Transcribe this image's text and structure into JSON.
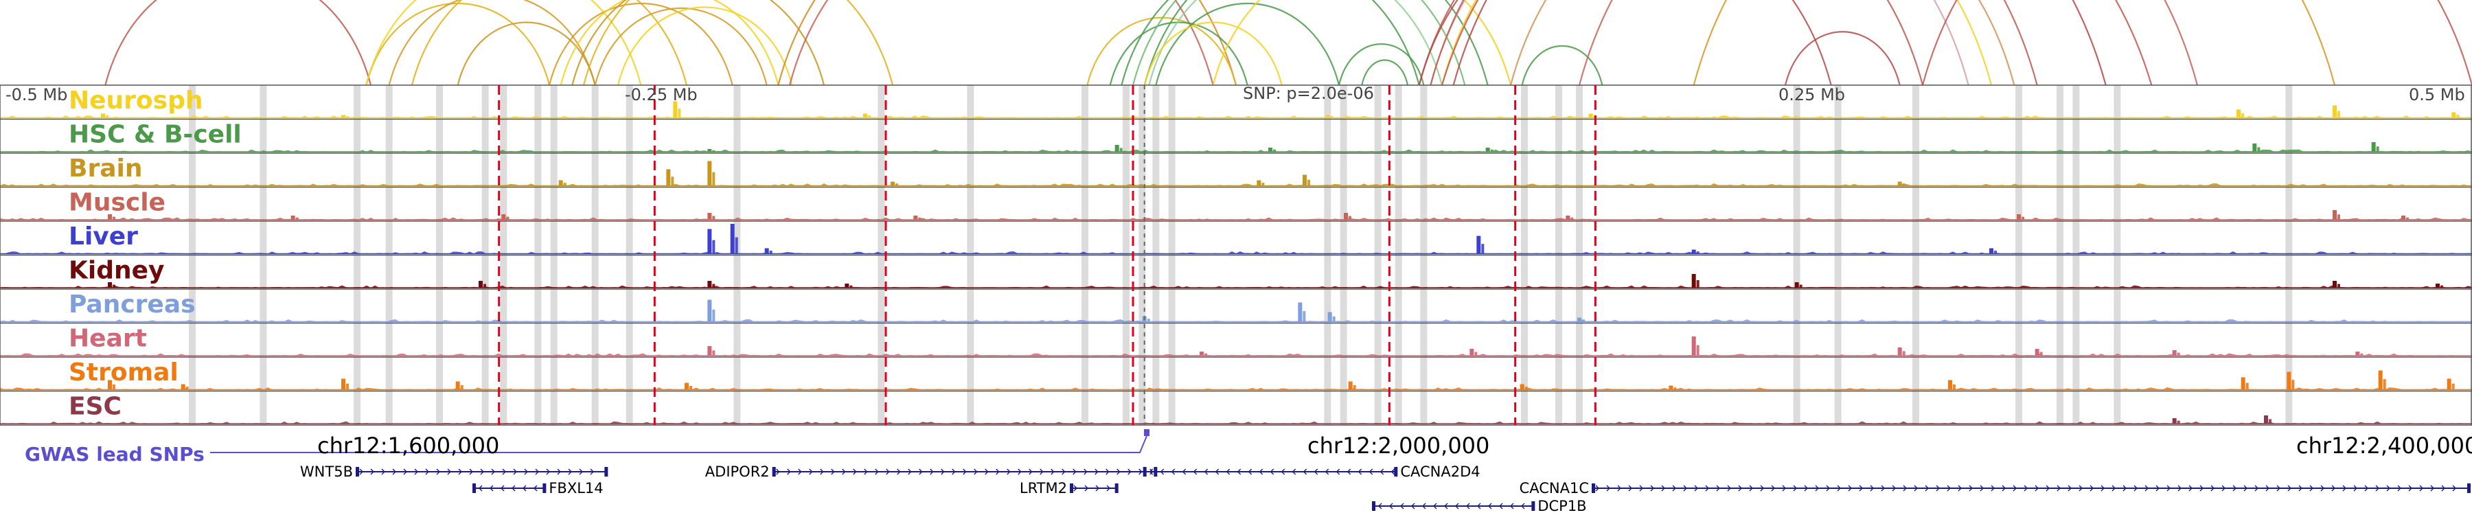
{
  "region": {
    "chrom": "chr12",
    "start": 1460000,
    "end": 2540000,
    "center": 1960000
  },
  "scale": {
    "left": "-0.5 Mb",
    "mid_left": "-0.25 Mb",
    "center": "SNP: p=2.0e-06",
    "mid_right": "0.25 Mb",
    "right": "0.5 Mb"
  },
  "coordinates": [
    "chr12:1,600,000",
    "chr12:2,000,000",
    "chr12:2,400,000"
  ],
  "gwas": {
    "label": "GWAS lead SNPs",
    "snp_positions": [
      1961000
    ]
  },
  "colors": {
    "Neurosph": "#f4d21f",
    "HSC & B-cell": "#4a9a4a",
    "Brain": "#c8961e",
    "Muscle": "#c76358",
    "Liver": "#3d3fd0",
    "Kidney": "#6e0a0a",
    "Pancreas": "#7f9fdc",
    "Heart": "#d06878",
    "Stromal": "#f07a12",
    "ESC": "#8c3a4a",
    "gwas": "#5a4fcf",
    "gene": "#1c1c80",
    "highlight": "#d0d0d0",
    "boundary": "#e0001b"
  },
  "tracks": [
    "Neurosph",
    "HSC & B-cell",
    "Brain",
    "Muscle",
    "Liver",
    "Kidney",
    "Pancreas",
    "Heart",
    "Stromal",
    "ESC"
  ],
  "peaks": {
    "Neurosph": [
      [
        1505000,
        3
      ],
      [
        1610000,
        2
      ],
      [
        1755000,
        12
      ],
      [
        1838000,
        3
      ],
      [
        2040000,
        2
      ],
      [
        2155000,
        3
      ],
      [
        2438000,
        6
      ],
      [
        2480000,
        9
      ],
      [
        2532000,
        4
      ]
    ],
    "HSC & B-cell": [
      [
        1770000,
        2
      ],
      [
        1948000,
        5
      ],
      [
        2015000,
        3
      ],
      [
        2110000,
        3
      ],
      [
        2445000,
        6
      ],
      [
        2497000,
        7
      ]
    ],
    "Brain": [
      [
        1705000,
        4
      ],
      [
        1752000,
        12
      ],
      [
        1770000,
        18
      ],
      [
        1850000,
        3
      ],
      [
        2010000,
        4
      ],
      [
        2030000,
        8
      ],
      [
        2290000,
        3
      ]
    ],
    "Muscle": [
      [
        1508000,
        4
      ],
      [
        1588000,
        3
      ],
      [
        1680000,
        4
      ],
      [
        1770000,
        5
      ],
      [
        1860000,
        3
      ],
      [
        2048000,
        5
      ],
      [
        2145000,
        3
      ],
      [
        2342000,
        4
      ],
      [
        2480000,
        7
      ],
      [
        2510000,
        3
      ]
    ],
    "Liver": [
      [
        1770000,
        18
      ],
      [
        1780000,
        22
      ],
      [
        1795000,
        4
      ],
      [
        2106000,
        13
      ],
      [
        2200000,
        3
      ],
      [
        2330000,
        4
      ]
    ],
    "Kidney": [
      [
        1508000,
        4
      ],
      [
        1670000,
        5
      ],
      [
        1770000,
        5
      ],
      [
        1830000,
        3
      ],
      [
        2200000,
        10
      ],
      [
        2245000,
        4
      ],
      [
        2480000,
        5
      ],
      [
        2525000,
        3
      ]
    ],
    "Pancreas": [
      [
        1770000,
        16
      ],
      [
        1960000,
        4
      ],
      [
        2028000,
        14
      ],
      [
        2041000,
        7
      ],
      [
        2150000,
        3
      ]
    ],
    "Heart": [
      [
        1770000,
        7
      ],
      [
        1985000,
        3
      ],
      [
        2103000,
        5
      ],
      [
        2200000,
        14
      ],
      [
        2290000,
        6
      ],
      [
        2350000,
        5
      ],
      [
        2410000,
        4
      ],
      [
        2490000,
        3
      ]
    ],
    "Stromal": [
      [
        1508000,
        7
      ],
      [
        1540000,
        4
      ],
      [
        1610000,
        8
      ],
      [
        1660000,
        6
      ],
      [
        1760000,
        5
      ],
      [
        2050000,
        6
      ],
      [
        2125000,
        4
      ],
      [
        2190000,
        3
      ],
      [
        2312000,
        7
      ],
      [
        2440000,
        9
      ],
      [
        2460000,
        13
      ],
      [
        2500000,
        14
      ],
      [
        2530000,
        8
      ]
    ],
    "ESC": [
      [
        2410000,
        4
      ],
      [
        2450000,
        6
      ]
    ]
  },
  "highlights": [
    1544000,
    1575000,
    1616000,
    1630000,
    1652000,
    1672000,
    1680000,
    1695000,
    1702000,
    1720000,
    1735000,
    1782000,
    1845000,
    1884000,
    1934000,
    1952000,
    1959000,
    1965000,
    1972000,
    2040000,
    2047000,
    2062000,
    2071000,
    2082000,
    2126000,
    2141000,
    2150000,
    2245000,
    2263000,
    2297000,
    2342000,
    2360000,
    2367000,
    2385000,
    2460000
  ],
  "boundaries": [
    1678000,
    1746000,
    1847000,
    1955000,
    2067000,
    2122000,
    2157000
  ],
  "genes": [
    {
      "name": "WNT5B",
      "start": 1616000,
      "end": 1725000,
      "strand": "+",
      "row": 0,
      "label_side": "left"
    },
    {
      "name": "FBXL14",
      "start": 1667000,
      "end": 1698000,
      "strand": "-",
      "row": 1,
      "label_side": "right"
    },
    {
      "name": "ADIPOR2",
      "start": 1798000,
      "end": 1965000,
      "strand": "+",
      "row": 0,
      "label_side": "left"
    },
    {
      "name": "LRTM2",
      "start": 1928000,
      "end": 1948000,
      "strand": "+",
      "row": 1,
      "label_side": "left"
    },
    {
      "name": "CACNA2D4",
      "start": 1960000,
      "end": 2070000,
      "strand": "-",
      "row": 0,
      "label_side": "right"
    },
    {
      "name": "CACNA1C",
      "start": 2156000,
      "end": 2540000,
      "strand": "+",
      "row": 1,
      "label_side": "left"
    },
    {
      "name": "DCP1B",
      "start": 2060000,
      "end": 2130000,
      "strand": "-",
      "row": 2,
      "label_side": "right"
    }
  ],
  "loops": [
    {
      "a": 1506000,
      "b": 1622000,
      "color": "#c0584f"
    },
    {
      "a": 1620000,
      "b": 1700000,
      "color": "#e2b218"
    },
    {
      "a": 1620000,
      "b": 1740000,
      "color": "#f4d21f"
    },
    {
      "a": 1630000,
      "b": 1720000,
      "color": "#d49a22"
    },
    {
      "a": 1640000,
      "b": 1760000,
      "color": "#e2b218"
    },
    {
      "a": 1660000,
      "b": 1720000,
      "color": "#c8961e"
    },
    {
      "a": 1700000,
      "b": 1780000,
      "color": "#d49a22"
    },
    {
      "a": 1705000,
      "b": 1800000,
      "color": "#f4d21f"
    },
    {
      "a": 1710000,
      "b": 1820000,
      "color": "#c8961e"
    },
    {
      "a": 1715000,
      "b": 1850000,
      "color": "#e2b218"
    },
    {
      "a": 1720000,
      "b": 1795000,
      "color": "#d49a22"
    },
    {
      "a": 1730000,
      "b": 1806000,
      "color": "#f4d21f"
    },
    {
      "a": 1805000,
      "b": 1990000,
      "color": "#c76358"
    },
    {
      "a": 1800000,
      "b": 2000000,
      "color": "#d48a1e"
    },
    {
      "a": 1935000,
      "b": 2000000,
      "color": "#e2b218"
    },
    {
      "a": 1945000,
      "b": 2005000,
      "color": "#4a9a4a"
    },
    {
      "a": 1950000,
      "b": 2080000,
      "color": "#4a9a4a"
    },
    {
      "a": 1955000,
      "b": 2100000,
      "color": "#6fb86f"
    },
    {
      "a": 1960000,
      "b": 2110000,
      "color": "#4a9a4a"
    },
    {
      "a": 1962000,
      "b": 2090000,
      "color": "#8fcf8f"
    },
    {
      "a": 1965000,
      "b": 2045000,
      "color": "#4a9a4a"
    },
    {
      "a": 1960000,
      "b": 2020000,
      "color": "#f4d21f"
    },
    {
      "a": 2045000,
      "b": 2082000,
      "color": "#4a9a4a"
    },
    {
      "a": 2055000,
      "b": 2075000,
      "color": "#4a9a4a"
    },
    {
      "a": 1990000,
      "b": 2120000,
      "color": "#f4d21f"
    },
    {
      "a": 2080000,
      "b": 2300000,
      "color": "#c0584f"
    },
    {
      "a": 2080000,
      "b": 2260000,
      "color": "#b54a48"
    },
    {
      "a": 2085000,
      "b": 2320000,
      "color": "#d9a0a0"
    },
    {
      "a": 2085000,
      "b": 2350000,
      "color": "#c0584f"
    },
    {
      "a": 2090000,
      "b": 2330000,
      "color": "#f4d21f"
    },
    {
      "a": 2090000,
      "b": 2400000,
      "color": "#c0584f"
    },
    {
      "a": 2095000,
      "b": 2380000,
      "color": "#b54a48"
    },
    {
      "a": 2120000,
      "b": 2340000,
      "color": "#d4935a"
    },
    {
      "a": 2125000,
      "b": 2160000,
      "color": "#4a9a4a"
    },
    {
      "a": 2150000,
      "b": 2420000,
      "color": "#c76358"
    },
    {
      "a": 2200000,
      "b": 2480000,
      "color": "#d49a22"
    },
    {
      "a": 2240000,
      "b": 2290000,
      "color": "#b54a48"
    },
    {
      "a": 2300000,
      "b": 2540000,
      "color": "#c0584f"
    }
  ]
}
